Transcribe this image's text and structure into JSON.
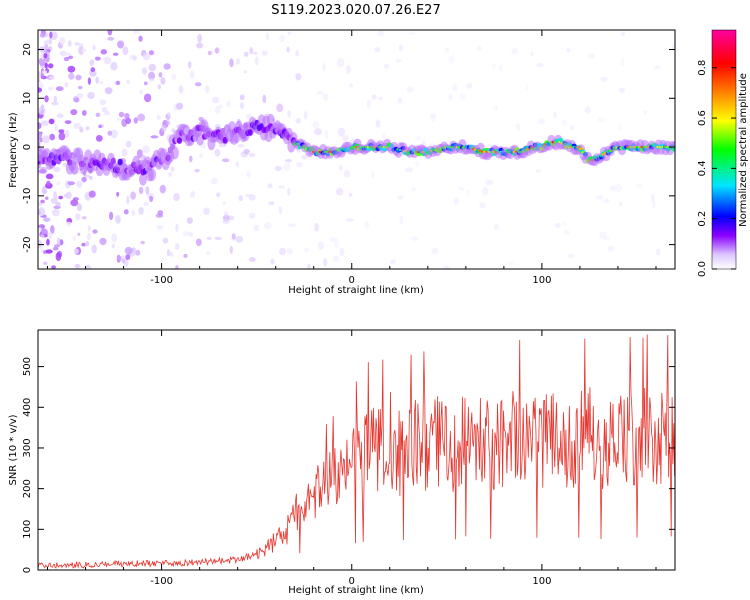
{
  "title": "S119.2023.020.07.26.E27",
  "chart_data": [
    {
      "type": "heatmap",
      "title": "S119.2023.020.07.26.E27",
      "xlabel": "Height of straight line (km)",
      "ylabel": "Frequency (Hz)",
      "xlim": [
        -165,
        170
      ],
      "ylim": [
        -25,
        24
      ],
      "x_ticks": [
        -100,
        0,
        100
      ],
      "y_ticks": [
        -20,
        -10,
        0,
        10,
        20
      ],
      "colorbar": {
        "label": "Normalized spectral amplitude",
        "range": [
          0,
          0.95
        ],
        "ticks": [
          0.0,
          0.2,
          0.4,
          0.6,
          0.8
        ],
        "colors": [
          "#ffffff",
          "#dcc8ff",
          "#8a00ff",
          "#0000ff",
          "#00e5ff",
          "#00ff00",
          "#ffff00",
          "#ff8000",
          "#ff0000",
          "#ff00a0"
        ]
      },
      "ridge": {
        "x": [
          -165,
          -140,
          -120,
          -110,
          -100,
          -90,
          -80,
          -70,
          -60,
          -50,
          -40,
          -35,
          -30,
          -25,
          -20,
          -10,
          0,
          10,
          20,
          30,
          40,
          50,
          60,
          70,
          80,
          90,
          95,
          100,
          105,
          110,
          115,
          120,
          125,
          130,
          135,
          140,
          150,
          160,
          170
        ],
        "y": [
          -2,
          -3,
          -4,
          -5,
          -3,
          2,
          3,
          2,
          3,
          4,
          4,
          2,
          1,
          0,
          -1,
          -1,
          0,
          0,
          0,
          -1,
          -1,
          0,
          0,
          -1,
          -1,
          -1,
          0,
          0,
          1,
          1,
          0,
          0,
          -3,
          -2,
          -1,
          0,
          0,
          0,
          0
        ]
      }
    },
    {
      "type": "line",
      "xlabel": "Height of straight line (km)",
      "ylabel": "SNR (10 * v/v)",
      "xlim": [
        -165,
        170
      ],
      "ylim": [
        0,
        590
      ],
      "x_ticks": [
        -100,
        0,
        100
      ],
      "y_ticks": [
        0,
        100,
        200,
        300,
        400,
        500
      ],
      "color": "#e8352e",
      "series": [
        {
          "x": [
            -165,
            -150,
            -130,
            -110,
            -90,
            -80,
            -70,
            -60,
            -50,
            -45,
            -40,
            -35,
            -30,
            -28,
            -25,
            -22,
            -20,
            -15,
            -10,
            -5,
            0,
            5,
            10,
            12,
            15,
            18,
            20,
            25,
            30,
            35,
            40,
            45,
            50,
            55,
            60,
            65,
            70,
            75,
            80,
            85,
            90,
            95,
            100,
            105,
            110,
            115,
            120,
            125,
            130,
            135,
            140,
            145,
            150,
            155,
            160,
            165,
            170
          ],
          "y": [
            10,
            12,
            14,
            16,
            18,
            20,
            22,
            25,
            40,
            55,
            70,
            90,
            130,
            160,
            180,
            175,
            185,
            200,
            215,
            240,
            260,
            270,
            300,
            310,
            300,
            290,
            320,
            290,
            300,
            310,
            305,
            320,
            310,
            300,
            330,
            315,
            320,
            300,
            310,
            330,
            320,
            325,
            310,
            330,
            320,
            300,
            320,
            330,
            300,
            320,
            340,
            330,
            320,
            330,
            340,
            330,
            330
          ]
        }
      ]
    }
  ]
}
